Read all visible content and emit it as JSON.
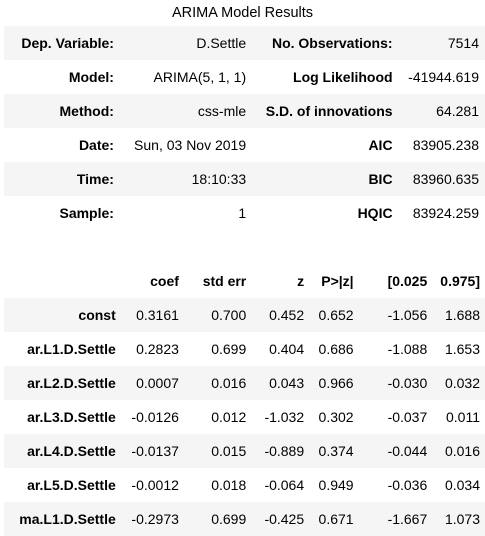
{
  "caption": "ARIMA Model Results",
  "summary": {
    "rows": [
      [
        "Dep. Variable:",
        "D.Settle",
        "No. Observations:",
        "7514"
      ],
      [
        "Model:",
        "ARIMA(5, 1, 1)",
        "Log Likelihood",
        "-41944.619"
      ],
      [
        "Method:",
        "css-mle",
        "S.D. of innovations",
        "64.281"
      ],
      [
        "Date:",
        "Sun, 03 Nov 2019",
        "AIC",
        "83905.238"
      ],
      [
        "Time:",
        "18:10:33",
        "BIC",
        "83960.635"
      ],
      [
        "Sample:",
        "1",
        "HQIC",
        "83924.259"
      ]
    ]
  },
  "coefficients": {
    "headers": [
      "",
      "coef",
      "std err",
      "z",
      "P>|z|",
      "[0.025",
      "0.975]"
    ],
    "rows": [
      [
        "const",
        "0.3161",
        "0.700",
        "0.452",
        "0.652",
        "-1.056",
        "1.688"
      ],
      [
        "ar.L1.D.Settle",
        "0.2823",
        "0.699",
        "0.404",
        "0.686",
        "-1.088",
        "1.653"
      ],
      [
        "ar.L2.D.Settle",
        "0.0007",
        "0.016",
        "0.043",
        "0.966",
        "-0.030",
        "0.032"
      ],
      [
        "ar.L3.D.Settle",
        "-0.0126",
        "0.012",
        "-1.032",
        "0.302",
        "-0.037",
        "0.011"
      ],
      [
        "ar.L4.D.Settle",
        "-0.0137",
        "0.015",
        "-0.889",
        "0.374",
        "-0.044",
        "0.016"
      ],
      [
        "ar.L5.D.Settle",
        "-0.0012",
        "0.018",
        "-0.064",
        "0.949",
        "-0.036",
        "0.034"
      ],
      [
        "ma.L1.D.Settle",
        "-0.2973",
        "0.699",
        "-0.425",
        "0.671",
        "-1.667",
        "1.073"
      ]
    ]
  },
  "colors": {
    "stripe": "#f5f5f5",
    "text": "#000000",
    "background": "#ffffff"
  }
}
